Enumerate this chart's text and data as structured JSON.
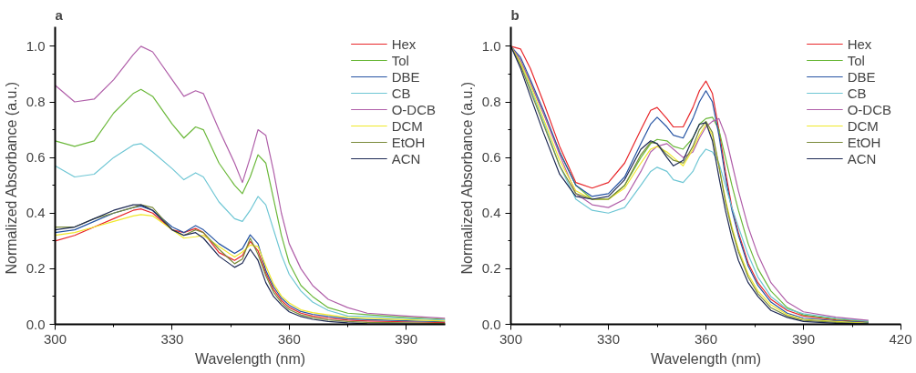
{
  "chart_data": [
    {
      "type": "line",
      "title": "a",
      "xlabel": "Wavelength (nm)",
      "ylabel": "Normalized  Absorbance (a.u.)",
      "xlim": [
        300,
        400
      ],
      "ylim": [
        0,
        1.07
      ],
      "xticks": [
        300,
        330,
        360,
        390
      ],
      "yticks": [
        {
          "value": 0,
          "label": "0.0"
        },
        {
          "value": 0.2,
          "label": "0.2"
        },
        {
          "value": 0.4,
          "label": "0.4"
        },
        {
          "value": 0.6,
          "label": "0.6"
        },
        {
          "value": 0.8,
          "label": "0.8"
        },
        {
          "value": 1,
          "label": "1.0"
        }
      ],
      "grid": false,
      "legend": "top right",
      "marker": "none",
      "line_style": "solid",
      "x": [
        300,
        305,
        310,
        315,
        320,
        322,
        325,
        330,
        333,
        336,
        338,
        342,
        346,
        348,
        350,
        352,
        354,
        356,
        358,
        360,
        363,
        366,
        370,
        375,
        380,
        390,
        400
      ],
      "series": [
        {
          "name": "Hex",
          "color": "#e8262a",
          "values": [
            0.3,
            0.32,
            0.35,
            0.38,
            0.41,
            0.415,
            0.4,
            0.34,
            0.33,
            0.345,
            0.33,
            0.258,
            0.23,
            0.248,
            0.298,
            0.265,
            0.185,
            0.125,
            0.086,
            0.061,
            0.04,
            0.03,
            0.022,
            0.015,
            0.012,
            0.009,
            0.006
          ]
        },
        {
          "name": "Tol",
          "color": "#6bb83a",
          "values": [
            0.66,
            0.64,
            0.66,
            0.76,
            0.83,
            0.845,
            0.82,
            0.72,
            0.67,
            0.71,
            0.7,
            0.58,
            0.5,
            0.47,
            0.53,
            0.61,
            0.58,
            0.45,
            0.32,
            0.22,
            0.14,
            0.1,
            0.06,
            0.04,
            0.035,
            0.025,
            0.018
          ]
        },
        {
          "name": "DBE",
          "color": "#2553a3",
          "values": [
            0.33,
            0.34,
            0.37,
            0.4,
            0.42,
            0.425,
            0.41,
            0.35,
            0.33,
            0.355,
            0.34,
            0.29,
            0.255,
            0.272,
            0.322,
            0.29,
            0.195,
            0.135,
            0.094,
            0.069,
            0.046,
            0.036,
            0.028,
            0.02,
            0.017,
            0.013,
            0.009
          ]
        },
        {
          "name": "CB",
          "color": "#6ec6d4",
          "values": [
            0.57,
            0.53,
            0.54,
            0.6,
            0.645,
            0.65,
            0.62,
            0.56,
            0.52,
            0.545,
            0.53,
            0.44,
            0.38,
            0.37,
            0.41,
            0.46,
            0.43,
            0.34,
            0.25,
            0.18,
            0.12,
            0.08,
            0.05,
            0.03,
            0.028,
            0.021,
            0.015
          ]
        },
        {
          "name": "O-DCB",
          "color": "#b05fa9",
          "values": [
            0.86,
            0.8,
            0.81,
            0.88,
            0.97,
            1.0,
            0.98,
            0.88,
            0.82,
            0.84,
            0.83,
            0.7,
            0.58,
            0.51,
            0.6,
            0.7,
            0.68,
            0.55,
            0.4,
            0.29,
            0.2,
            0.14,
            0.09,
            0.06,
            0.04,
            0.03,
            0.022
          ]
        },
        {
          "name": "DCM",
          "color": "#f0e82a",
          "values": [
            0.32,
            0.33,
            0.35,
            0.37,
            0.39,
            0.395,
            0.39,
            0.34,
            0.31,
            0.315,
            0.32,
            0.28,
            0.242,
            0.26,
            0.285,
            0.28,
            0.21,
            0.145,
            0.102,
            0.077,
            0.052,
            0.042,
            0.034,
            0.025,
            0.022,
            0.017,
            0.012
          ]
        },
        {
          "name": "EtOH",
          "color": "#7a8a3a",
          "values": [
            0.35,
            0.35,
            0.38,
            0.4,
            0.42,
            0.43,
            0.42,
            0.34,
            0.32,
            0.34,
            0.33,
            0.27,
            0.218,
            0.235,
            0.31,
            0.252,
            0.175,
            0.115,
            0.078,
            0.053,
            0.034,
            0.024,
            0.016,
            0.01,
            0.007,
            0.005,
            0.003
          ]
        },
        {
          "name": "ACN",
          "color": "#1e2a55",
          "values": [
            0.34,
            0.35,
            0.38,
            0.41,
            0.43,
            0.43,
            0.41,
            0.34,
            0.32,
            0.33,
            0.31,
            0.245,
            0.205,
            0.22,
            0.27,
            0.23,
            0.15,
            0.1,
            0.07,
            0.045,
            0.028,
            0.018,
            0.01,
            0.005,
            0.002,
            0.001,
            0
          ]
        }
      ]
    },
    {
      "type": "line",
      "title": "b",
      "xlabel": "Wavelength (nm)",
      "ylabel": "Normalized  Absorbance (a.u.)",
      "xlim": [
        300,
        420
      ],
      "ylim": [
        0,
        1.07
      ],
      "xticks": [
        300,
        330,
        360,
        390,
        420
      ],
      "yticks": [
        {
          "value": 0,
          "label": "0.0"
        },
        {
          "value": 0.2,
          "label": "0.2"
        },
        {
          "value": 0.4,
          "label": "0.4"
        },
        {
          "value": 0.6,
          "label": "0.6"
        },
        {
          "value": 0.8,
          "label": "0.8"
        },
        {
          "value": 1,
          "label": "1.0"
        }
      ],
      "grid": false,
      "legend": "top right",
      "marker": "none",
      "line_style": "solid",
      "x": [
        300,
        303,
        306,
        310,
        315,
        320,
        325,
        330,
        335,
        340,
        343,
        345,
        348,
        350,
        353,
        356,
        358,
        360,
        362,
        364,
        366,
        368,
        370,
        373,
        376,
        380,
        385,
        390,
        400,
        410
      ],
      "series": [
        {
          "name": "Hex",
          "color": "#e8262a",
          "values": [
            1.0,
            0.99,
            0.92,
            0.8,
            0.64,
            0.51,
            0.49,
            0.51,
            0.58,
            0.7,
            0.77,
            0.78,
            0.74,
            0.71,
            0.71,
            0.78,
            0.84,
            0.875,
            0.83,
            0.7,
            0.55,
            0.42,
            0.33,
            0.22,
            0.15,
            0.09,
            0.05,
            0.03,
            0.016,
            0.008
          ]
        },
        {
          "name": "Tol",
          "color": "#6bb83a",
          "values": [
            1.0,
            0.95,
            0.87,
            0.76,
            0.62,
            0.5,
            0.45,
            0.45,
            0.5,
            0.6,
            0.65,
            0.665,
            0.66,
            0.64,
            0.63,
            0.67,
            0.72,
            0.74,
            0.745,
            0.7,
            0.6,
            0.5,
            0.41,
            0.29,
            0.2,
            0.12,
            0.06,
            0.034,
            0.019,
            0.01
          ]
        },
        {
          "name": "DBE",
          "color": "#2553a3",
          "values": [
            1.0,
            0.96,
            0.88,
            0.77,
            0.62,
            0.5,
            0.46,
            0.47,
            0.53,
            0.65,
            0.72,
            0.745,
            0.71,
            0.68,
            0.67,
            0.74,
            0.8,
            0.84,
            0.8,
            0.68,
            0.53,
            0.41,
            0.32,
            0.21,
            0.14,
            0.08,
            0.04,
            0.022,
            0.013,
            0.006
          ]
        },
        {
          "name": "CB",
          "color": "#6ec6d4",
          "values": [
            1.0,
            0.94,
            0.85,
            0.73,
            0.57,
            0.45,
            0.41,
            0.4,
            0.42,
            0.5,
            0.55,
            0.565,
            0.55,
            0.52,
            0.51,
            0.55,
            0.6,
            0.63,
            0.62,
            0.58,
            0.5,
            0.42,
            0.35,
            0.25,
            0.17,
            0.1,
            0.055,
            0.038,
            0.022,
            0.012
          ]
        },
        {
          "name": "O-DCB",
          "color": "#b05fa9",
          "values": [
            1.0,
            0.95,
            0.87,
            0.76,
            0.61,
            0.47,
            0.43,
            0.42,
            0.45,
            0.55,
            0.62,
            0.64,
            0.65,
            0.63,
            0.6,
            0.62,
            0.67,
            0.71,
            0.73,
            0.74,
            0.68,
            0.58,
            0.48,
            0.35,
            0.25,
            0.15,
            0.08,
            0.045,
            0.026,
            0.014
          ]
        },
        {
          "name": "DCM",
          "color": "#f0e82a",
          "values": [
            1.0,
            0.94,
            0.86,
            0.74,
            0.59,
            0.48,
            0.45,
            0.45,
            0.49,
            0.58,
            0.63,
            0.64,
            0.62,
            0.6,
            0.57,
            0.63,
            0.68,
            0.72,
            0.68,
            0.57,
            0.45,
            0.35,
            0.27,
            0.18,
            0.12,
            0.07,
            0.035,
            0.018,
            0.01,
            0.004
          ]
        },
        {
          "name": "EtOH",
          "color": "#7a8a3a",
          "values": [
            1.0,
            0.93,
            0.84,
            0.72,
            0.57,
            0.47,
            0.45,
            0.45,
            0.5,
            0.61,
            0.655,
            0.65,
            0.61,
            0.59,
            0.58,
            0.64,
            0.7,
            0.73,
            0.69,
            0.57,
            0.44,
            0.34,
            0.26,
            0.17,
            0.11,
            0.06,
            0.03,
            0.014,
            0.007,
            0.002
          ]
        },
        {
          "name": "ACN",
          "color": "#1e2a55",
          "values": [
            1.0,
            0.92,
            0.82,
            0.69,
            0.54,
            0.46,
            0.45,
            0.46,
            0.52,
            0.63,
            0.66,
            0.65,
            0.6,
            0.57,
            0.59,
            0.67,
            0.72,
            0.725,
            0.66,
            0.53,
            0.41,
            0.31,
            0.23,
            0.15,
            0.1,
            0.05,
            0.025,
            0.01,
            0.004,
            0.001
          ]
        }
      ]
    }
  ]
}
